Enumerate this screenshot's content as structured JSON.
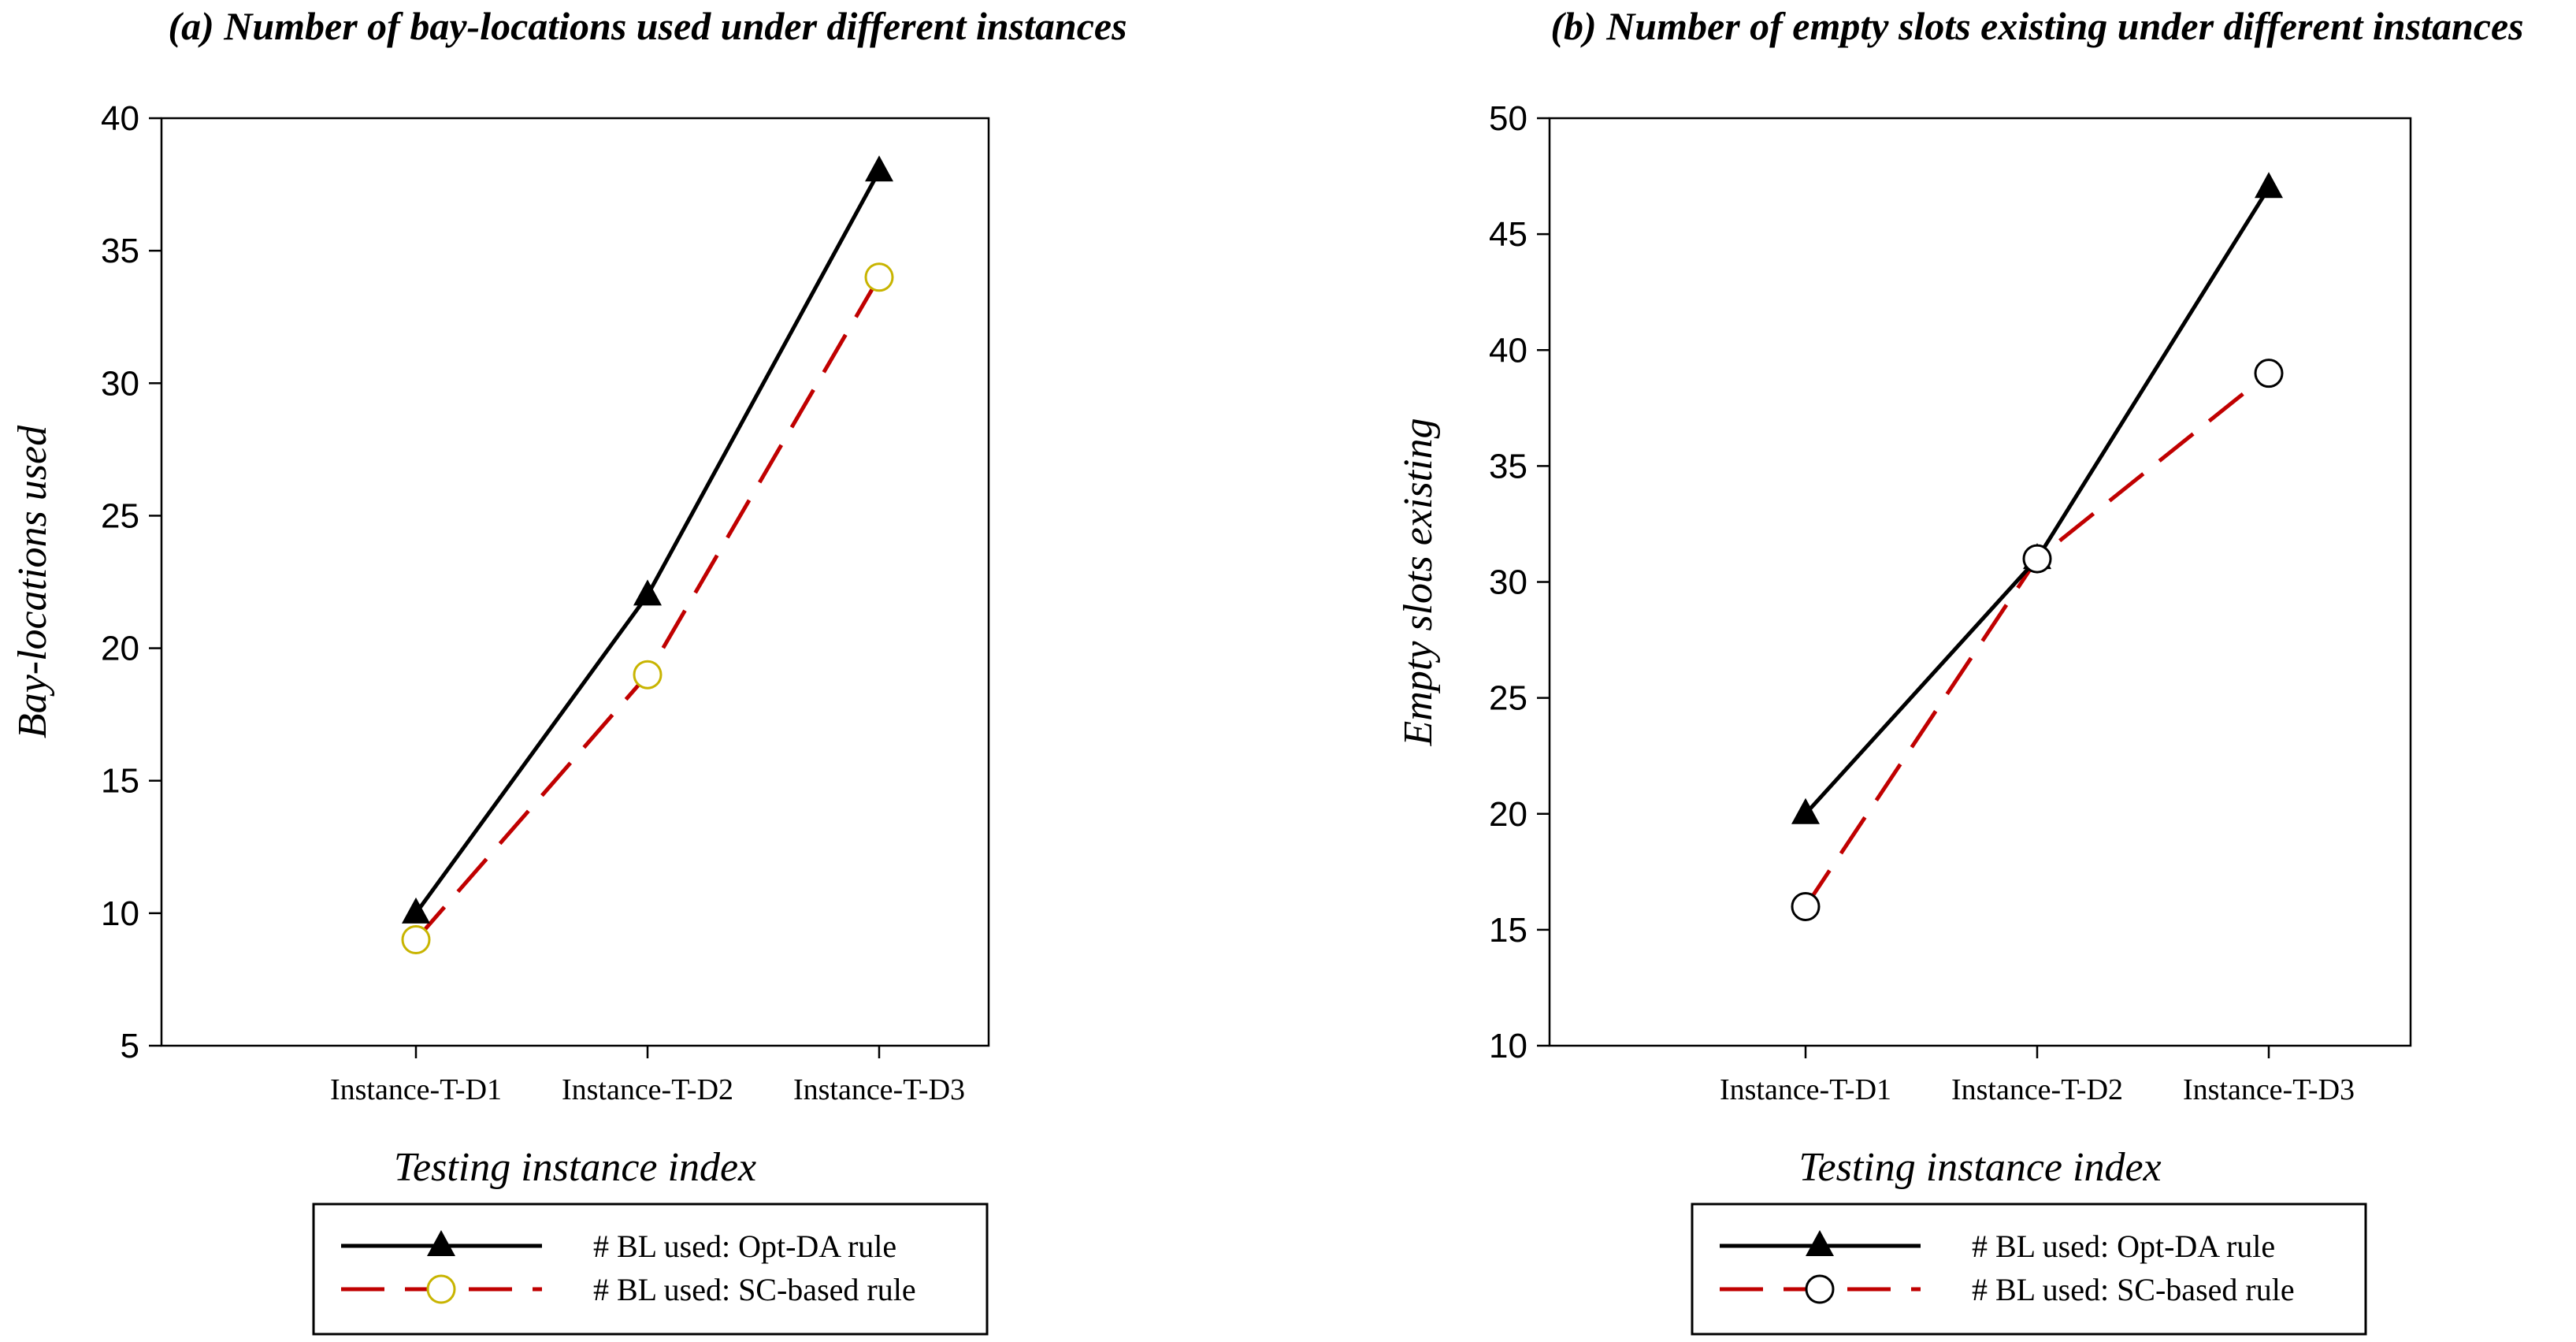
{
  "colors": {
    "opt_line": "#000000",
    "sc_line": "#c00000",
    "sc_marker_a": "#c8b400",
    "sc_marker_b": "#000000"
  },
  "chart_data": [
    {
      "type": "line",
      "title": "(a) Number of bay-locations used under different instances",
      "xlabel": "Testing instance index",
      "ylabel": "Bay-locations used",
      "categories": [
        "Instance-T-D1",
        "Instance-T-D2",
        "Instance-T-D3"
      ],
      "ylim": [
        5,
        40
      ],
      "yticks": [
        5,
        10,
        15,
        20,
        25,
        30,
        35,
        40
      ],
      "series": [
        {
          "name": "# BL used: Opt-DA rule",
          "values": [
            10,
            22,
            38
          ],
          "marker": "triangle",
          "style": "solid"
        },
        {
          "name": "# BL used: SC-based rule",
          "values": [
            9,
            19,
            34
          ],
          "marker": "circle",
          "style": "dashed"
        }
      ]
    },
    {
      "type": "line",
      "title": "(b) Number of empty slots existing under different instances",
      "xlabel": "Testing instance index",
      "ylabel": "Empty slots existing",
      "categories": [
        "Instance-T-D1",
        "Instance-T-D2",
        "Instance-T-D3"
      ],
      "ylim": [
        10,
        50
      ],
      "yticks": [
        10,
        15,
        20,
        25,
        30,
        35,
        40,
        45,
        50
      ],
      "series": [
        {
          "name": "# BL used: Opt-DA rule",
          "values": [
            20,
            31,
            47
          ],
          "marker": "triangle",
          "style": "solid"
        },
        {
          "name": "# BL used: SC-based rule",
          "values": [
            16,
            31,
            39
          ],
          "marker": "circle",
          "style": "dashed"
        }
      ]
    }
  ]
}
